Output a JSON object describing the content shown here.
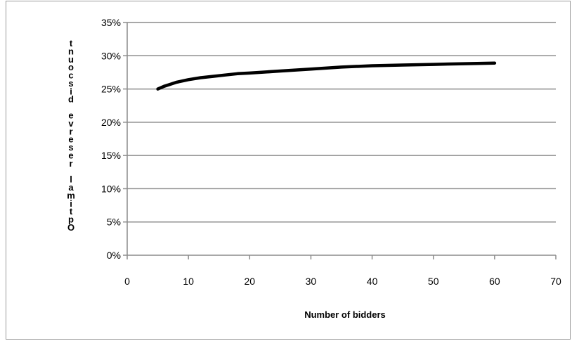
{
  "chart_data": {
    "type": "line",
    "title": "",
    "xlabel": "Number of bidders",
    "ylabel": "Optimal reserve discount",
    "xlim": [
      0,
      70
    ],
    "ylim": [
      0,
      0.35
    ],
    "x_ticks": [
      0,
      10,
      20,
      30,
      40,
      50,
      60,
      70
    ],
    "y_ticks": [
      0,
      0.05,
      0.1,
      0.15,
      0.2,
      0.25,
      0.3,
      0.35
    ],
    "y_tick_labels": [
      "0%",
      "5%",
      "10%",
      "15%",
      "20%",
      "25%",
      "30%",
      "35%"
    ],
    "x_tick_labels": [
      "0",
      "10",
      "20",
      "30",
      "40",
      "50",
      "60",
      "70"
    ],
    "grid": "horizontal",
    "legend": "none",
    "series": [
      {
        "color": "#000000",
        "x": [
          5,
          6,
          7,
          8,
          9,
          10,
          12,
          14,
          16,
          18,
          20,
          25,
          30,
          35,
          40,
          45,
          50,
          55,
          60
        ],
        "y": [
          0.25,
          0.254,
          0.257,
          0.26,
          0.262,
          0.264,
          0.267,
          0.269,
          0.271,
          0.273,
          0.274,
          0.277,
          0.28,
          0.283,
          0.285,
          0.286,
          0.287,
          0.288,
          0.289
        ]
      }
    ]
  }
}
